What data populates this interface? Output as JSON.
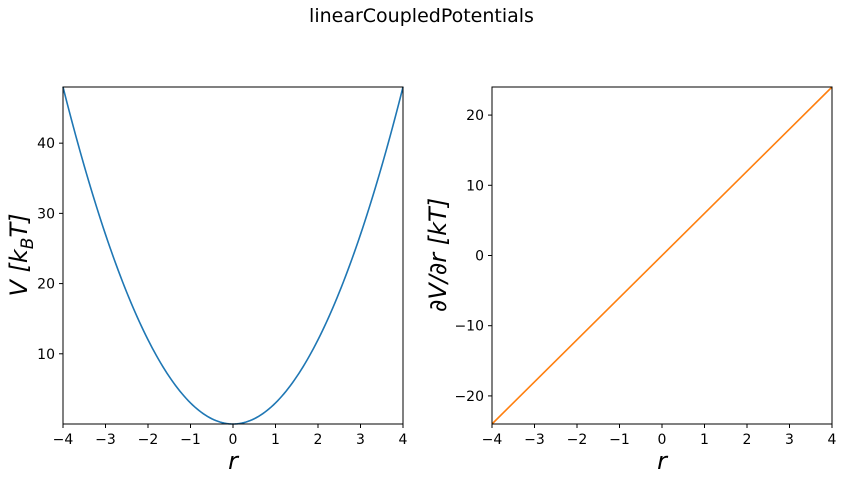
{
  "figure": {
    "suptitle": "linearCoupledPotentials"
  },
  "chart_data": [
    {
      "type": "line",
      "title": "",
      "xlabel": "r",
      "ylabel": "V [k_B T]",
      "ylabel_parts": [
        "V [k",
        "B",
        "T]"
      ],
      "xlim": [
        -4,
        4
      ],
      "ylim": [
        0,
        48
      ],
      "xticks": [
        -4,
        -3,
        -2,
        -1,
        0,
        1,
        2,
        3,
        4
      ],
      "yticks": [
        10,
        20,
        30,
        40
      ],
      "grid": false,
      "series": [
        {
          "color": "#1f77b4",
          "x": [
            -4,
            -3.5,
            -3,
            -2.5,
            -2,
            -1.5,
            -1,
            -0.5,
            0,
            0.5,
            1,
            1.5,
            2,
            2.5,
            3,
            3.5,
            4
          ],
          "y": [
            48,
            36.75,
            27,
            18.75,
            12,
            6.75,
            3,
            0.75,
            0,
            0.75,
            3,
            6.75,
            12,
            18.75,
            27,
            36.75,
            48
          ]
        }
      ]
    },
    {
      "type": "line",
      "title": "",
      "xlabel": "r",
      "ylabel": "∂V/∂r [kT]",
      "xlim": [
        -4,
        4
      ],
      "ylim": [
        -24,
        24
      ],
      "xticks": [
        -4,
        -3,
        -2,
        -1,
        0,
        1,
        2,
        3,
        4
      ],
      "yticks": [
        -20,
        -10,
        0,
        10,
        20
      ],
      "grid": false,
      "series": [
        {
          "color": "#ff7f0e",
          "x": [
            -4,
            4
          ],
          "y": [
            -24,
            24
          ]
        }
      ]
    }
  ]
}
